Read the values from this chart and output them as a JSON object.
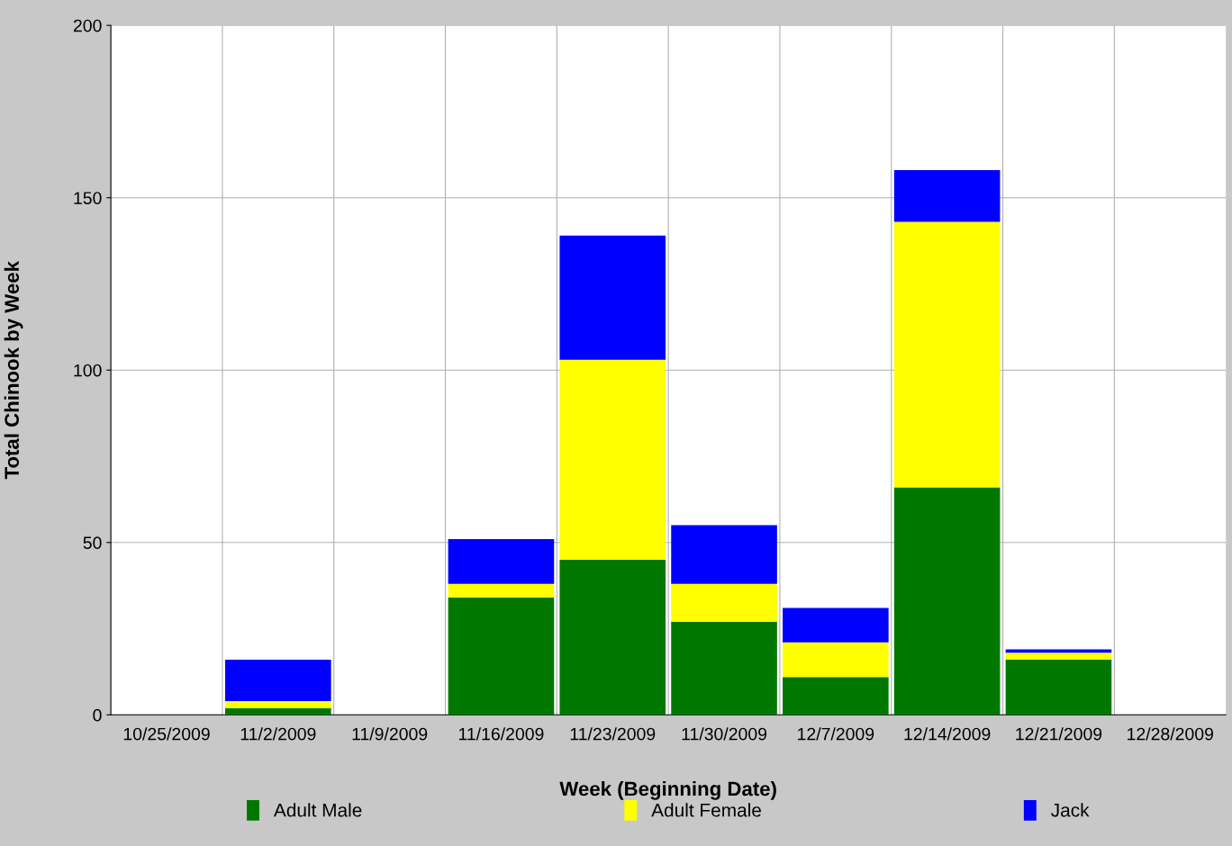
{
  "chart_data": {
    "type": "bar",
    "stacked": true,
    "xlabel": "Week (Beginning Date)",
    "ylabel": "Total Chinook by Week",
    "categories": [
      "10/25/2009",
      "11/2/2009",
      "11/9/2009",
      "11/16/2009",
      "11/23/2009",
      "11/30/2009",
      "12/7/2009",
      "12/14/2009",
      "12/21/2009",
      "12/28/2009"
    ],
    "series": [
      {
        "name": "Adult Male",
        "color": "#007800",
        "values": [
          0,
          2,
          0,
          34,
          45,
          27,
          11,
          66,
          16,
          0
        ]
      },
      {
        "name": "Adult Female",
        "color": "#ffff00",
        "values": [
          0,
          2,
          0,
          4,
          58,
          11,
          10,
          77,
          2,
          0
        ]
      },
      {
        "name": "Jack",
        "color": "#0000ff",
        "values": [
          0,
          12,
          0,
          13,
          36,
          17,
          10,
          15,
          1,
          0
        ]
      }
    ],
    "ylim": [
      0,
      200
    ],
    "yticks": [
      0,
      50,
      100,
      150,
      200
    ],
    "grid": true,
    "legend": "bottom"
  }
}
